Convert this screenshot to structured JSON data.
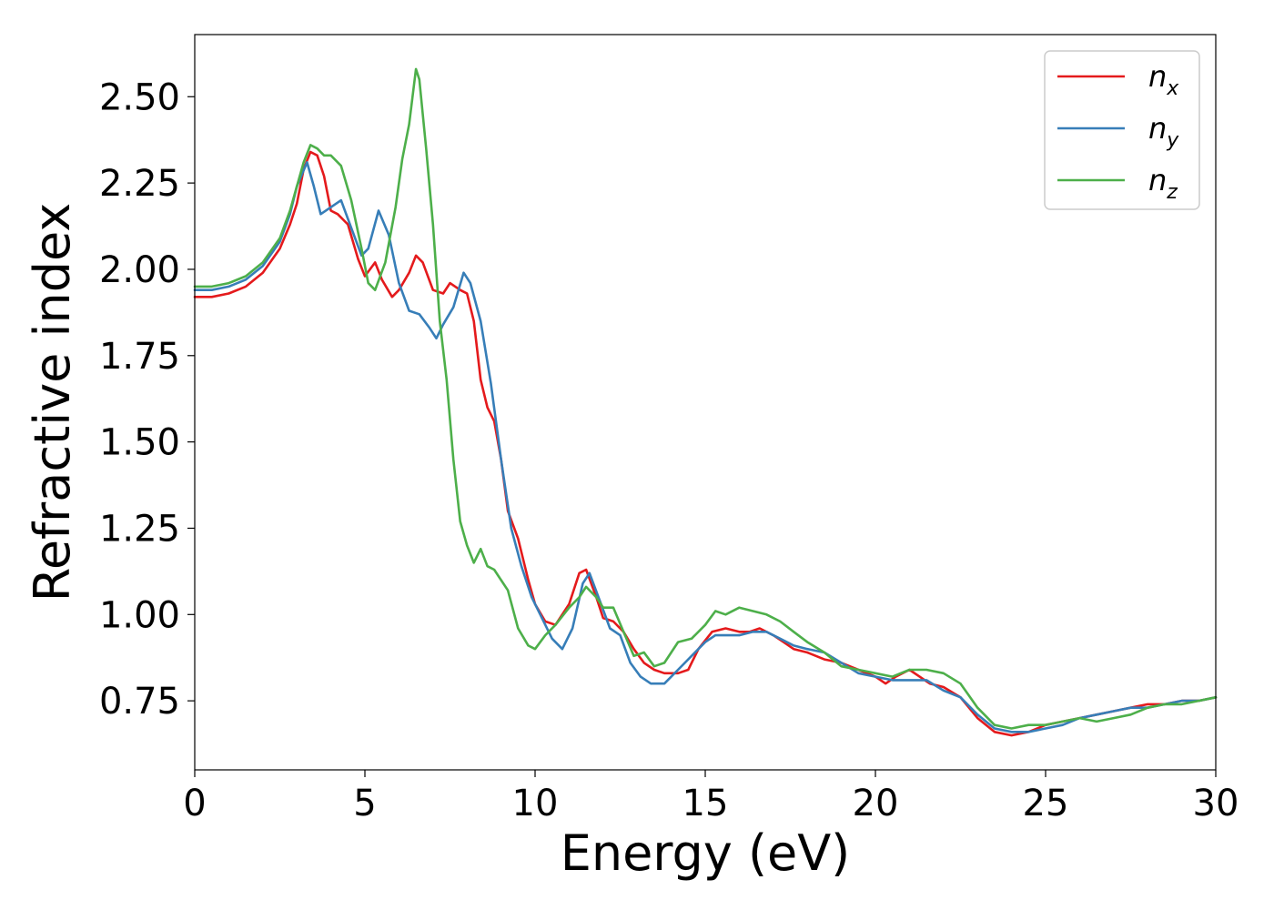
{
  "chart_data": {
    "type": "line",
    "xlabel": "Energy (eV)",
    "ylabel": "Refractive index",
    "xlim": [
      0,
      30
    ],
    "ylim": [
      0.55,
      2.68
    ],
    "x_ticks": [
      "0",
      "5",
      "10",
      "15",
      "20",
      "25",
      "30"
    ],
    "y_ticks": [
      "0.75",
      "1.00",
      "1.25",
      "1.50",
      "1.75",
      "2.00",
      "2.25",
      "2.50"
    ],
    "grid": false,
    "legend_position": "top-right",
    "series": [
      {
        "name": "n_x",
        "label_base": "n",
        "label_sub": "x",
        "color": "#e41a1c",
        "points": [
          [
            0,
            1.92
          ],
          [
            0.5,
            1.92
          ],
          [
            1.0,
            1.93
          ],
          [
            1.5,
            1.95
          ],
          [
            2.0,
            1.99
          ],
          [
            2.5,
            2.06
          ],
          [
            2.8,
            2.13
          ],
          [
            3.0,
            2.19
          ],
          [
            3.2,
            2.29
          ],
          [
            3.4,
            2.34
          ],
          [
            3.6,
            2.33
          ],
          [
            3.8,
            2.27
          ],
          [
            4.0,
            2.17
          ],
          [
            4.2,
            2.16
          ],
          [
            4.5,
            2.13
          ],
          [
            4.8,
            2.03
          ],
          [
            5.0,
            1.98
          ],
          [
            5.3,
            2.02
          ],
          [
            5.5,
            1.97
          ],
          [
            5.8,
            1.92
          ],
          [
            6.0,
            1.94
          ],
          [
            6.3,
            1.99
          ],
          [
            6.5,
            2.04
          ],
          [
            6.7,
            2.02
          ],
          [
            7.0,
            1.94
          ],
          [
            7.3,
            1.93
          ],
          [
            7.5,
            1.96
          ],
          [
            7.8,
            1.94
          ],
          [
            8.0,
            1.93
          ],
          [
            8.2,
            1.85
          ],
          [
            8.4,
            1.68
          ],
          [
            8.6,
            1.6
          ],
          [
            8.8,
            1.56
          ],
          [
            9.0,
            1.45
          ],
          [
            9.2,
            1.3
          ],
          [
            9.5,
            1.22
          ],
          [
            9.8,
            1.1
          ],
          [
            10.0,
            1.03
          ],
          [
            10.3,
            0.98
          ],
          [
            10.6,
            0.97
          ],
          [
            11.0,
            1.03
          ],
          [
            11.3,
            1.12
          ],
          [
            11.5,
            1.13
          ],
          [
            11.8,
            1.05
          ],
          [
            12.0,
            0.99
          ],
          [
            12.3,
            0.98
          ],
          [
            12.6,
            0.95
          ],
          [
            12.9,
            0.9
          ],
          [
            13.2,
            0.86
          ],
          [
            13.5,
            0.84
          ],
          [
            13.8,
            0.83
          ],
          [
            14.2,
            0.83
          ],
          [
            14.5,
            0.84
          ],
          [
            14.8,
            0.9
          ],
          [
            15.2,
            0.95
          ],
          [
            15.6,
            0.96
          ],
          [
            16.0,
            0.95
          ],
          [
            16.3,
            0.95
          ],
          [
            16.6,
            0.96
          ],
          [
            17.0,
            0.94
          ],
          [
            17.3,
            0.92
          ],
          [
            17.6,
            0.9
          ],
          [
            18.0,
            0.89
          ],
          [
            18.5,
            0.87
          ],
          [
            19.0,
            0.86
          ],
          [
            19.5,
            0.84
          ],
          [
            20.0,
            0.82
          ],
          [
            20.3,
            0.8
          ],
          [
            20.6,
            0.82
          ],
          [
            21.0,
            0.84
          ],
          [
            21.3,
            0.82
          ],
          [
            21.6,
            0.8
          ],
          [
            22.0,
            0.79
          ],
          [
            22.5,
            0.76
          ],
          [
            23.0,
            0.7
          ],
          [
            23.5,
            0.66
          ],
          [
            24.0,
            0.65
          ],
          [
            24.5,
            0.66
          ],
          [
            25.0,
            0.68
          ],
          [
            25.5,
            0.69
          ],
          [
            26.0,
            0.7
          ],
          [
            26.5,
            0.71
          ],
          [
            27.0,
            0.72
          ],
          [
            27.5,
            0.73
          ],
          [
            28.0,
            0.74
          ],
          [
            28.5,
            0.74
          ],
          [
            29.0,
            0.75
          ],
          [
            29.5,
            0.75
          ],
          [
            30.0,
            0.76
          ]
        ]
      },
      {
        "name": "n_y",
        "label_base": "n",
        "label_sub": "y",
        "color": "#377eb8",
        "points": [
          [
            0,
            1.94
          ],
          [
            0.5,
            1.94
          ],
          [
            1.0,
            1.95
          ],
          [
            1.5,
            1.97
          ],
          [
            2.0,
            2.01
          ],
          [
            2.5,
            2.08
          ],
          [
            2.8,
            2.16
          ],
          [
            3.0,
            2.24
          ],
          [
            3.3,
            2.31
          ],
          [
            3.5,
            2.24
          ],
          [
            3.7,
            2.16
          ],
          [
            4.0,
            2.18
          ],
          [
            4.3,
            2.2
          ],
          [
            4.6,
            2.12
          ],
          [
            4.9,
            2.04
          ],
          [
            5.1,
            2.06
          ],
          [
            5.4,
            2.17
          ],
          [
            5.7,
            2.1
          ],
          [
            6.0,
            1.96
          ],
          [
            6.3,
            1.88
          ],
          [
            6.6,
            1.87
          ],
          [
            6.9,
            1.83
          ],
          [
            7.1,
            1.8
          ],
          [
            7.3,
            1.84
          ],
          [
            7.6,
            1.89
          ],
          [
            7.9,
            1.99
          ],
          [
            8.1,
            1.96
          ],
          [
            8.4,
            1.85
          ],
          [
            8.7,
            1.67
          ],
          [
            9.0,
            1.45
          ],
          [
            9.3,
            1.25
          ],
          [
            9.6,
            1.14
          ],
          [
            9.9,
            1.05
          ],
          [
            10.2,
            0.99
          ],
          [
            10.5,
            0.93
          ],
          [
            10.8,
            0.9
          ],
          [
            11.1,
            0.96
          ],
          [
            11.4,
            1.09
          ],
          [
            11.6,
            1.12
          ],
          [
            11.9,
            1.04
          ],
          [
            12.2,
            0.96
          ],
          [
            12.5,
            0.94
          ],
          [
            12.8,
            0.86
          ],
          [
            13.1,
            0.82
          ],
          [
            13.4,
            0.8
          ],
          [
            13.8,
            0.8
          ],
          [
            14.2,
            0.84
          ],
          [
            14.6,
            0.88
          ],
          [
            15.0,
            0.92
          ],
          [
            15.3,
            0.94
          ],
          [
            15.7,
            0.94
          ],
          [
            16.0,
            0.94
          ],
          [
            16.4,
            0.95
          ],
          [
            16.8,
            0.95
          ],
          [
            17.2,
            0.93
          ],
          [
            17.6,
            0.91
          ],
          [
            18.0,
            0.9
          ],
          [
            18.5,
            0.89
          ],
          [
            19.0,
            0.86
          ],
          [
            19.5,
            0.83
          ],
          [
            20.0,
            0.82
          ],
          [
            20.5,
            0.81
          ],
          [
            21.0,
            0.81
          ],
          [
            21.5,
            0.81
          ],
          [
            22.0,
            0.78
          ],
          [
            22.5,
            0.76
          ],
          [
            23.0,
            0.71
          ],
          [
            23.5,
            0.67
          ],
          [
            24.0,
            0.66
          ],
          [
            24.5,
            0.66
          ],
          [
            25.0,
            0.67
          ],
          [
            25.5,
            0.68
          ],
          [
            26.0,
            0.7
          ],
          [
            26.5,
            0.71
          ],
          [
            27.0,
            0.72
          ],
          [
            27.5,
            0.73
          ],
          [
            28.0,
            0.73
          ],
          [
            28.5,
            0.74
          ],
          [
            29.0,
            0.75
          ],
          [
            29.5,
            0.75
          ],
          [
            30.0,
            0.76
          ]
        ]
      },
      {
        "name": "n_z",
        "label_base": "n",
        "label_sub": "z",
        "color": "#4daf4a",
        "points": [
          [
            0,
            1.95
          ],
          [
            0.5,
            1.95
          ],
          [
            1.0,
            1.96
          ],
          [
            1.5,
            1.98
          ],
          [
            2.0,
            2.02
          ],
          [
            2.5,
            2.09
          ],
          [
            2.8,
            2.17
          ],
          [
            3.0,
            2.24
          ],
          [
            3.2,
            2.31
          ],
          [
            3.4,
            2.36
          ],
          [
            3.6,
            2.35
          ],
          [
            3.8,
            2.33
          ],
          [
            4.0,
            2.33
          ],
          [
            4.3,
            2.3
          ],
          [
            4.6,
            2.2
          ],
          [
            4.9,
            2.06
          ],
          [
            5.1,
            1.96
          ],
          [
            5.3,
            1.94
          ],
          [
            5.6,
            2.02
          ],
          [
            5.9,
            2.18
          ],
          [
            6.1,
            2.32
          ],
          [
            6.3,
            2.42
          ],
          [
            6.5,
            2.58
          ],
          [
            6.6,
            2.55
          ],
          [
            6.8,
            2.35
          ],
          [
            7.0,
            2.13
          ],
          [
            7.2,
            1.85
          ],
          [
            7.4,
            1.68
          ],
          [
            7.6,
            1.45
          ],
          [
            7.8,
            1.27
          ],
          [
            8.0,
            1.2
          ],
          [
            8.2,
            1.15
          ],
          [
            8.4,
            1.19
          ],
          [
            8.6,
            1.14
          ],
          [
            8.8,
            1.13
          ],
          [
            9.0,
            1.1
          ],
          [
            9.2,
            1.07
          ],
          [
            9.5,
            0.96
          ],
          [
            9.8,
            0.91
          ],
          [
            10.0,
            0.9
          ],
          [
            10.3,
            0.94
          ],
          [
            10.6,
            0.97
          ],
          [
            11.0,
            1.02
          ],
          [
            11.3,
            1.05
          ],
          [
            11.5,
            1.08
          ],
          [
            11.8,
            1.05
          ],
          [
            12.0,
            1.02
          ],
          [
            12.3,
            1.02
          ],
          [
            12.6,
            0.95
          ],
          [
            12.9,
            0.88
          ],
          [
            13.2,
            0.89
          ],
          [
            13.5,
            0.85
          ],
          [
            13.8,
            0.86
          ],
          [
            14.2,
            0.92
          ],
          [
            14.6,
            0.93
          ],
          [
            15.0,
            0.97
          ],
          [
            15.3,
            1.01
          ],
          [
            15.6,
            1.0
          ],
          [
            16.0,
            1.02
          ],
          [
            16.4,
            1.01
          ],
          [
            16.8,
            1.0
          ],
          [
            17.2,
            0.98
          ],
          [
            17.6,
            0.95
          ],
          [
            18.0,
            0.92
          ],
          [
            18.5,
            0.89
          ],
          [
            19.0,
            0.85
          ],
          [
            19.5,
            0.84
          ],
          [
            20.0,
            0.83
          ],
          [
            20.5,
            0.82
          ],
          [
            21.0,
            0.84
          ],
          [
            21.5,
            0.84
          ],
          [
            22.0,
            0.83
          ],
          [
            22.5,
            0.8
          ],
          [
            23.0,
            0.73
          ],
          [
            23.5,
            0.68
          ],
          [
            24.0,
            0.67
          ],
          [
            24.5,
            0.68
          ],
          [
            25.0,
            0.68
          ],
          [
            25.5,
            0.69
          ],
          [
            26.0,
            0.7
          ],
          [
            26.5,
            0.69
          ],
          [
            27.0,
            0.7
          ],
          [
            27.5,
            0.71
          ],
          [
            28.0,
            0.73
          ],
          [
            28.5,
            0.74
          ],
          [
            29.0,
            0.74
          ],
          [
            29.5,
            0.75
          ],
          [
            30.0,
            0.76
          ]
        ]
      }
    ]
  }
}
